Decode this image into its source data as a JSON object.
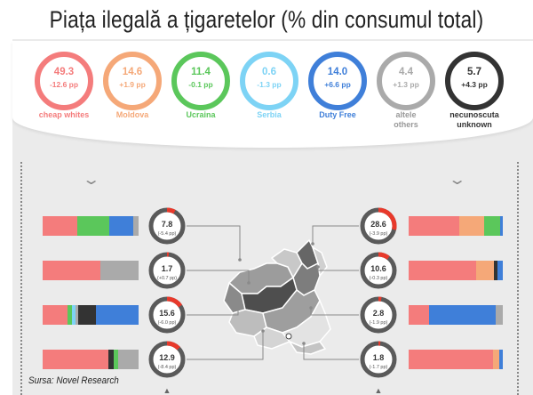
{
  "title": "Piața ilegală a țigaretelor (% din consumul total)",
  "source": "Sursa: Novel Research",
  "colors": {
    "cheap_whites": "#f47c7c",
    "moldova": "#f5a878",
    "ucraina": "#5bc75b",
    "serbia": "#7dd3f5",
    "duty_free": "#3f7fd9",
    "others": "#aaaaaa",
    "unknown": "#333333",
    "dial_red": "#e8392b",
    "dial_gray": "#5a5a5a"
  },
  "chart_data": [
    {
      "type": "donut-row",
      "items": [
        {
          "label": "cheap whites",
          "value": 49.3,
          "change": "-12.6 pp",
          "color": "#f47c7c"
        },
        {
          "label": "Moldova",
          "value": 14.6,
          "change": "+1.9 pp",
          "color": "#f5a878"
        },
        {
          "label": "Ucraina",
          "value": 11.4,
          "change": "-0.1 pp",
          "color": "#5bc75b"
        },
        {
          "label": "Serbia",
          "value": 0.6,
          "change": "-1.3 pp",
          "color": "#7dd3f5"
        },
        {
          "label": "Duty Free",
          "value": 14.0,
          "change": "+6.6 pp",
          "color": "#3f7fd9"
        },
        {
          "label": "altele others",
          "value": 4.4,
          "change": "+1.3 pp",
          "color": "#aaaaaa"
        },
        {
          "label": "necunoscuta unknown",
          "value": 5.7,
          "change": "+4.3 pp",
          "color": "#333333"
        }
      ]
    },
    {
      "type": "regions",
      "left": [
        {
          "value": 7.8,
          "change": "(-5.4 pp)",
          "dial": 0.078,
          "bar": [
            {
              "c": "#f47c7c",
              "v": 38
            },
            {
              "c": "#5bc75b",
              "v": 36
            },
            {
              "c": "#3f7fd9",
              "v": 26
            },
            {
              "c": "#aaaaaa",
              "v": 6
            }
          ]
        },
        {
          "value": 1.7,
          "change": "(+0.7 pp)",
          "dial": 0.017,
          "bar": [
            {
              "c": "#f47c7c",
              "v": 60
            },
            {
              "c": "#aaaaaa",
              "v": 40
            }
          ]
        },
        {
          "value": 15.6,
          "change": "(-6.0 pp)",
          "dial": 0.156,
          "bar": [
            {
              "c": "#f47c7c",
              "v": 26
            },
            {
              "c": "#5bc75b",
              "v": 5
            },
            {
              "c": "#7dd3f5",
              "v": 3
            },
            {
              "c": "#aaaaaa",
              "v": 3
            },
            {
              "c": "#333333",
              "v": 19
            },
            {
              "c": "#3f7fd9",
              "v": 44
            }
          ]
        },
        {
          "value": 12.9,
          "change": "(-8.4 pp)",
          "dial": 0.129,
          "bar": [
            {
              "c": "#f47c7c",
              "v": 63
            },
            {
              "c": "#333333",
              "v": 5
            },
            {
              "c": "#5bc75b",
              "v": 4
            },
            {
              "c": "#aaaaaa",
              "v": 20
            }
          ]
        }
      ],
      "right": [
        {
          "value": 28.6,
          "change": "(-3.9 pp)",
          "dial": 0.286,
          "bar": [
            {
              "c": "#f47c7c",
              "v": 53
            },
            {
              "c": "#f5a878",
              "v": 26
            },
            {
              "c": "#5bc75b",
              "v": 17
            },
            {
              "c": "#3f7fd9",
              "v": 3
            }
          ]
        },
        {
          "value": 10.6,
          "change": "(-0.3 pp)",
          "dial": 0.106,
          "bar": [
            {
              "c": "#f47c7c",
              "v": 72
            },
            {
              "c": "#f5a878",
              "v": 19
            },
            {
              "c": "#333333",
              "v": 3
            },
            {
              "c": "#3f7fd9",
              "v": 6
            }
          ]
        },
        {
          "value": 2.8,
          "change": "(-1.9 pp)",
          "dial": 0.028,
          "bar": [
            {
              "c": "#f47c7c",
              "v": 22
            },
            {
              "c": "#3f7fd9",
              "v": 70
            },
            {
              "c": "#aaaaaa",
              "v": 8
            }
          ]
        },
        {
          "value": 1.8,
          "change": "(-1.7 pp)",
          "dial": 0.018,
          "bar": [
            {
              "c": "#f47c7c",
              "v": 87
            },
            {
              "c": "#f5a878",
              "v": 6
            },
            {
              "c": "#3f7fd9",
              "v": 4
            }
          ]
        }
      ]
    }
  ]
}
